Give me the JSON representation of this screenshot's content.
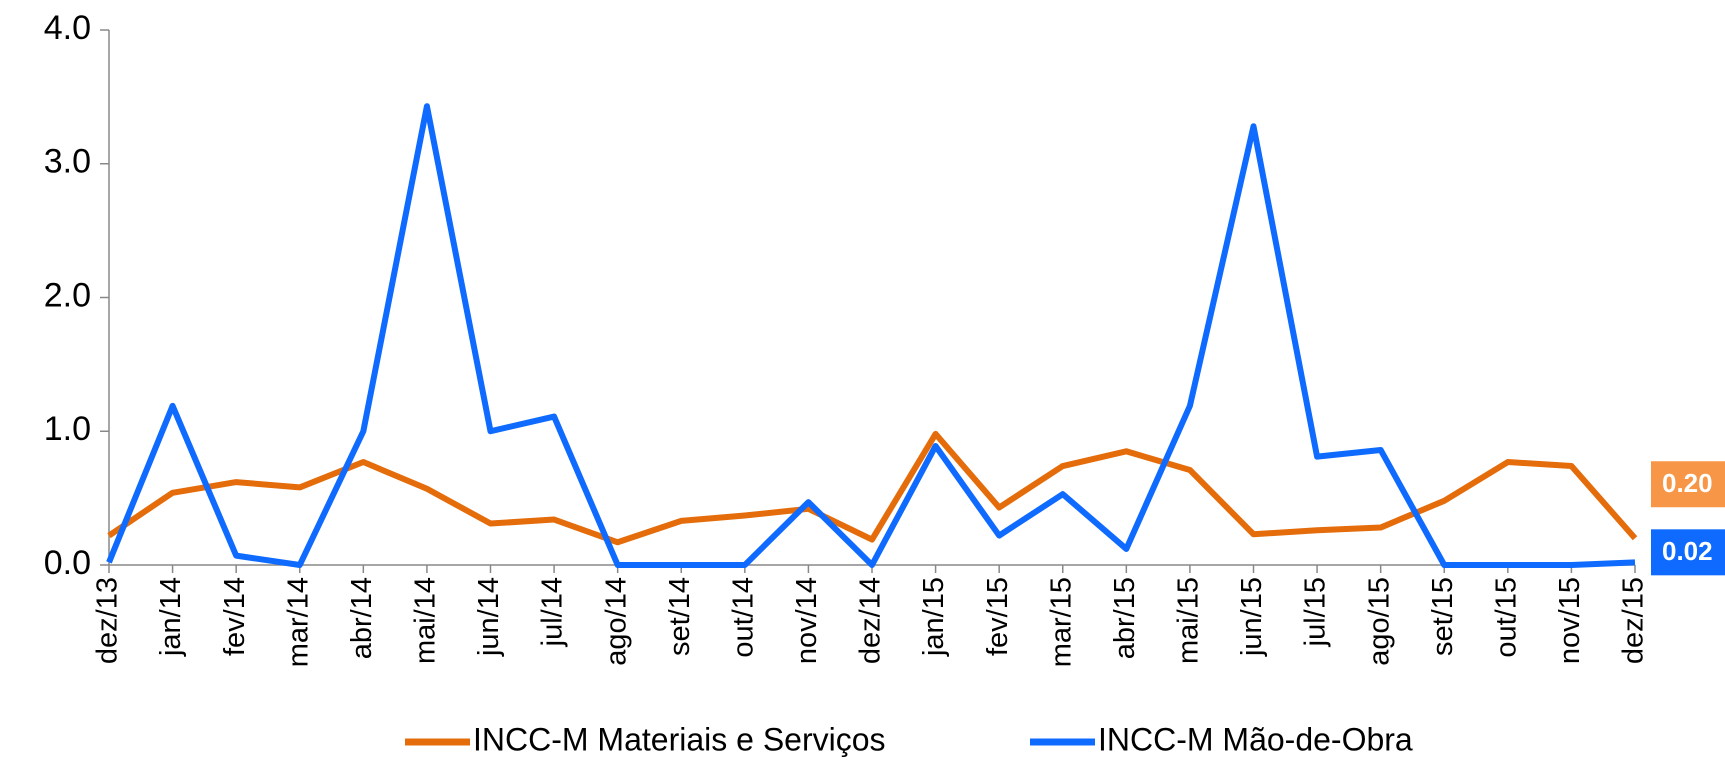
{
  "chart_data": {
    "type": "line",
    "categories": [
      "dez/13",
      "jan/14",
      "fev/14",
      "mar/14",
      "abr/14",
      "mai/14",
      "jun/14",
      "jul/14",
      "ago/14",
      "set/14",
      "out/14",
      "nov/14",
      "dez/14",
      "jan/15",
      "fev/15",
      "mar/15",
      "abr/15",
      "mai/15",
      "jun/15",
      "jul/15",
      "ago/15",
      "set/15",
      "out/15",
      "nov/15",
      "dez/15"
    ],
    "series": [
      {
        "name": "INCC-M Materiais e Serviços",
        "color": "#e46c0a",
        "values": [
          0.22,
          0.54,
          0.62,
          0.58,
          0.77,
          0.57,
          0.31,
          0.34,
          0.17,
          0.33,
          0.37,
          0.42,
          0.19,
          0.98,
          0.43,
          0.74,
          0.85,
          0.71,
          0.23,
          0.26,
          0.28,
          0.48,
          0.77,
          0.74,
          0.2
        ],
        "value_labels": [
          null,
          null,
          null,
          null,
          null,
          null,
          null,
          null,
          null,
          null,
          null,
          null,
          null,
          null,
          null,
          null,
          null,
          null,
          null,
          null,
          null,
          null,
          null,
          null,
          "0.20"
        ]
      },
      {
        "name": "INCC-M Mão-de-Obra",
        "color": "#0f6bff",
        "values": [
          0.02,
          1.19,
          0.07,
          0.0,
          1.0,
          3.43,
          1.0,
          1.11,
          0.0,
          0.0,
          0.0,
          0.47,
          0.0,
          0.89,
          0.22,
          0.53,
          0.12,
          1.19,
          3.28,
          0.81,
          0.86,
          0.0,
          0.0,
          0.0,
          0.02
        ],
        "value_labels": [
          null,
          null,
          null,
          null,
          null,
          null,
          null,
          null,
          null,
          null,
          null,
          null,
          null,
          null,
          null,
          null,
          null,
          null,
          null,
          null,
          null,
          null,
          null,
          null,
          "0.02"
        ]
      }
    ],
    "ylim": [
      0,
      4
    ],
    "yticks": [
      {
        "value": 0,
        "label": "0.0"
      },
      {
        "value": 1,
        "label": "1.0"
      },
      {
        "value": 2,
        "label": "2.0"
      },
      {
        "value": 3,
        "label": "3.0"
      },
      {
        "value": 4,
        "label": "4.0"
      }
    ],
    "legend": "bottom"
  }
}
